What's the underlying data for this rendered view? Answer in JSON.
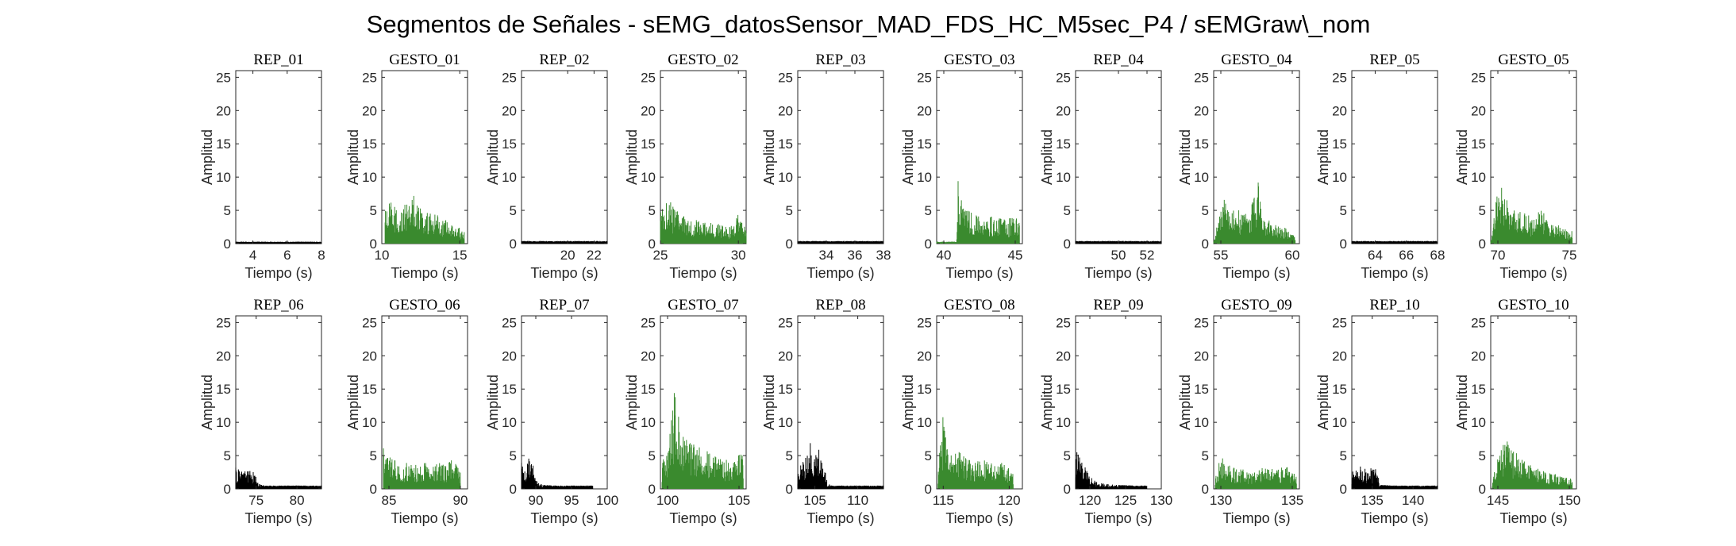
{
  "figure": {
    "title": "Segmentos de Señales - sEMG_datosSensor_MAD_FDS_HC_M5sec_P4 / sEMGraw\\_nom"
  },
  "colors": {
    "rep": "#000000",
    "gesto": "#3a8a2e",
    "axis": "#262626"
  },
  "chart_data": [
    {
      "type": "area",
      "title": "REP_01",
      "kind": "rep",
      "xlim": [
        3,
        8
      ],
      "xticks": [
        4,
        6,
        8
      ],
      "ylim": [
        0,
        26
      ],
      "yticks": [
        0,
        5,
        10,
        15,
        20,
        25
      ],
      "xlabel": "Tiempo (s)",
      "ylabel": "Amplitud",
      "envelope": {
        "x": [
          3,
          8
        ],
        "y": [
          0.3,
          0.3
        ]
      }
    },
    {
      "type": "area",
      "title": "GESTO_01",
      "kind": "gesto",
      "xlim": [
        10,
        15.5
      ],
      "xticks": [
        10,
        15
      ],
      "ylim": [
        0,
        26
      ],
      "yticks": [
        0,
        5,
        10,
        15,
        20,
        25
      ],
      "xlabel": "Tiempo (s)",
      "ylabel": "Amplitud",
      "envelope": {
        "x": [
          10.2,
          10.6,
          11,
          11.5,
          12,
          12.3,
          12.8,
          13.5,
          14,
          14.5,
          15,
          15.3
        ],
        "y": [
          5,
          6.5,
          5,
          6,
          7.5,
          6,
          5,
          4.5,
          4,
          3,
          2.5,
          2
        ]
      }
    },
    {
      "type": "area",
      "title": "REP_02",
      "kind": "rep",
      "xlim": [
        16.5,
        23
      ],
      "xticks": [
        20,
        22
      ],
      "ylim": [
        0,
        26
      ],
      "yticks": [
        0,
        5,
        10,
        15,
        20,
        25
      ],
      "xlabel": "Tiempo (s)",
      "ylabel": "Amplitud",
      "envelope": {
        "x": [
          16.5,
          23
        ],
        "y": [
          0.4,
          0.4
        ]
      }
    },
    {
      "type": "area",
      "title": "GESTO_02",
      "kind": "gesto",
      "xlim": [
        25,
        30.5
      ],
      "xticks": [
        25,
        30
      ],
      "ylim": [
        0,
        26
      ],
      "yticks": [
        0,
        5,
        10,
        15,
        20,
        25
      ],
      "xlabel": "Tiempo (s)",
      "ylabel": "Amplitud",
      "envelope": {
        "x": [
          25,
          25.5,
          26,
          26.5,
          27,
          27.5,
          28,
          28.5,
          29,
          29.5,
          30,
          30.5
        ],
        "y": [
          5,
          7,
          5,
          4.5,
          4,
          3.5,
          3.5,
          3,
          3,
          2.5,
          4.5,
          3
        ]
      }
    },
    {
      "type": "area",
      "title": "REP_03",
      "kind": "rep",
      "xlim": [
        32,
        38
      ],
      "xticks": [
        34,
        36,
        38
      ],
      "ylim": [
        0,
        26
      ],
      "yticks": [
        0,
        5,
        10,
        15,
        20,
        25
      ],
      "xlabel": "Tiempo (s)",
      "ylabel": "Amplitud",
      "envelope": {
        "x": [
          32,
          38
        ],
        "y": [
          0.4,
          0.4
        ]
      }
    },
    {
      "type": "area",
      "title": "GESTO_03",
      "kind": "gesto",
      "xlim": [
        39.5,
        45.5
      ],
      "xticks": [
        40,
        45
      ],
      "ylim": [
        0,
        26
      ],
      "yticks": [
        0,
        5,
        10,
        15,
        20,
        25
      ],
      "xlabel": "Tiempo (s)",
      "ylabel": "Amplitud",
      "envelope": {
        "x": [
          39.5,
          40.9,
          41,
          41.3,
          42,
          42.5,
          43,
          43.5,
          44,
          44.5,
          45,
          45.3
        ],
        "y": [
          0.3,
          0.3,
          10,
          6,
          5,
          4.5,
          4.5,
          4,
          4,
          3.5,
          5,
          3
        ]
      }
    },
    {
      "type": "area",
      "title": "REP_04",
      "kind": "rep",
      "xlim": [
        47,
        53
      ],
      "xticks": [
        50,
        52
      ],
      "ylim": [
        0,
        26
      ],
      "yticks": [
        0,
        5,
        10,
        15,
        20,
        25
      ],
      "xlabel": "Tiempo (s)",
      "ylabel": "Amplitud",
      "envelope": {
        "x": [
          47,
          53
        ],
        "y": [
          0.4,
          0.4
        ]
      }
    },
    {
      "type": "area",
      "title": "GESTO_04",
      "kind": "gesto",
      "xlim": [
        54.5,
        60.5
      ],
      "xticks": [
        55,
        60
      ],
      "ylim": [
        0,
        26
      ],
      "yticks": [
        0,
        5,
        10,
        15,
        20,
        25
      ],
      "xlabel": "Tiempo (s)",
      "ylabel": "Amplitud",
      "envelope": {
        "x": [
          54.5,
          55.2,
          55.6,
          56,
          56.5,
          57,
          57.6,
          58,
          58.5,
          59,
          59.5,
          60.2
        ],
        "y": [
          0.3,
          7.5,
          6,
          5.5,
          5,
          4.5,
          9.5,
          4,
          3.5,
          3,
          2.5,
          1
        ]
      }
    },
    {
      "type": "area",
      "title": "REP_05",
      "kind": "rep",
      "xlim": [
        62.5,
        68
      ],
      "xticks": [
        64,
        66,
        68
      ],
      "ylim": [
        0,
        26
      ],
      "yticks": [
        0,
        5,
        10,
        15,
        20,
        25
      ],
      "xlabel": "Tiempo (s)",
      "ylabel": "Amplitud",
      "envelope": {
        "x": [
          62.5,
          68
        ],
        "y": [
          0.4,
          0.4
        ]
      }
    },
    {
      "type": "area",
      "title": "GESTO_05",
      "kind": "gesto",
      "xlim": [
        69.5,
        75.5
      ],
      "xticks": [
        70,
        75
      ],
      "ylim": [
        0,
        26
      ],
      "yticks": [
        0,
        5,
        10,
        15,
        20,
        25
      ],
      "xlabel": "Tiempo (s)",
      "ylabel": "Amplitud",
      "envelope": {
        "x": [
          69.5,
          70.1,
          70.4,
          71,
          71.5,
          72,
          72.5,
          73,
          73.5,
          74,
          74.5,
          75.2
        ],
        "y": [
          0.3,
          10,
          7,
          6,
          5,
          4.5,
          4,
          5.5,
          3.5,
          3,
          2.5,
          2
        ]
      }
    },
    {
      "type": "area",
      "title": "REP_06",
      "kind": "rep",
      "xlim": [
        72.5,
        83
      ],
      "xticks": [
        75,
        80
      ],
      "ylim": [
        0,
        26
      ],
      "yticks": [
        0,
        5,
        10,
        15,
        20,
        25
      ],
      "xlabel": "Tiempo (s)",
      "ylabel": "Amplitud",
      "envelope": {
        "x": [
          72.5,
          73,
          74,
          75,
          75.3,
          76,
          78,
          80,
          83
        ],
        "y": [
          3.5,
          3,
          3,
          2.5,
          0.8,
          0.5,
          0.5,
          0.5,
          0.5
        ]
      }
    },
    {
      "type": "area",
      "title": "GESTO_06",
      "kind": "gesto",
      "xlim": [
        84.5,
        90.5
      ],
      "xticks": [
        85,
        90
      ],
      "ylim": [
        0,
        26
      ],
      "yticks": [
        0,
        5,
        10,
        15,
        20,
        25
      ],
      "xlabel": "Tiempo (s)",
      "ylabel": "Amplitud",
      "envelope": {
        "x": [
          84.6,
          85,
          85.5,
          86,
          86.5,
          87,
          87.5,
          88,
          88.5,
          89,
          89.5,
          90
        ],
        "y": [
          6.5,
          5,
          4.5,
          4,
          4,
          3.5,
          4,
          3.5,
          4,
          3.5,
          5.5,
          3
        ]
      }
    },
    {
      "type": "area",
      "title": "REP_07",
      "kind": "rep",
      "xlim": [
        88,
        100
      ],
      "xticks": [
        90,
        95,
        100
      ],
      "ylim": [
        0,
        26
      ],
      "yticks": [
        0,
        5,
        10,
        15,
        20,
        25
      ],
      "xlabel": "Tiempo (s)",
      "ylabel": "Amplitud",
      "envelope": {
        "x": [
          88,
          88.5,
          89,
          89.5,
          90.2,
          91,
          93,
          95,
          98
        ],
        "y": [
          4,
          3.5,
          5,
          4,
          1,
          0.6,
          0.5,
          0.5,
          0.5
        ]
      }
    },
    {
      "type": "area",
      "title": "GESTO_07",
      "kind": "gesto",
      "xlim": [
        99.5,
        105.5
      ],
      "xticks": [
        100,
        105
      ],
      "ylim": [
        0,
        26
      ],
      "yticks": [
        0,
        5,
        10,
        15,
        20,
        25
      ],
      "xlabel": "Tiempo (s)",
      "ylabel": "Amplitud",
      "envelope": {
        "x": [
          99.6,
          100,
          100.5,
          101,
          101.5,
          102,
          102.5,
          103,
          103.5,
          104,
          104.5,
          105.3
        ],
        "y": [
          4,
          6,
          15,
          8,
          7,
          6.5,
          6,
          5.5,
          5,
          4.5,
          4,
          6
        ]
      }
    },
    {
      "type": "area",
      "title": "REP_08",
      "kind": "rep",
      "xlim": [
        103,
        113
      ],
      "xticks": [
        105,
        110
      ],
      "ylim": [
        0,
        26
      ],
      "yticks": [
        0,
        5,
        10,
        15,
        20,
        25
      ],
      "xlabel": "Tiempo (s)",
      "ylabel": "Amplitud",
      "envelope": {
        "x": [
          103,
          103.5,
          104,
          104.5,
          105,
          105.5,
          106,
          106.5,
          107,
          109,
          113
        ],
        "y": [
          3,
          4,
          5,
          7.5,
          5,
          6,
          4,
          0.8,
          0.5,
          0.5,
          0.5
        ]
      }
    },
    {
      "type": "area",
      "title": "GESTO_08",
      "kind": "gesto",
      "xlim": [
        114.5,
        121
      ],
      "xticks": [
        115,
        120
      ],
      "ylim": [
        0,
        26
      ],
      "yticks": [
        0,
        5,
        10,
        15,
        20,
        25
      ],
      "xlabel": "Tiempo (s)",
      "ylabel": "Amplitud",
      "envelope": {
        "x": [
          114.6,
          115,
          115.5,
          116,
          116.5,
          117,
          117.5,
          118,
          118.5,
          119,
          119.5,
          120.3
        ],
        "y": [
          3,
          12,
          7,
          6,
          5,
          4.5,
          4,
          5,
          4,
          3.5,
          4,
          2.5
        ]
      }
    },
    {
      "type": "area",
      "title": "REP_09",
      "kind": "rep",
      "xlim": [
        118,
        130
      ],
      "xticks": [
        120,
        125,
        130
      ],
      "ylim": [
        0,
        26
      ],
      "yticks": [
        0,
        5,
        10,
        15,
        20,
        25
      ],
      "xlabel": "Tiempo (s)",
      "ylabel": "Amplitud",
      "envelope": {
        "x": [
          118,
          118.5,
          119,
          119.5,
          120,
          120.5,
          121,
          122,
          124,
          126,
          128
        ],
        "y": [
          6.5,
          5,
          4,
          3,
          2.5,
          1.5,
          1,
          0.8,
          0.6,
          0.5,
          0.5
        ]
      }
    },
    {
      "type": "area",
      "title": "GESTO_09",
      "kind": "gesto",
      "xlim": [
        129.5,
        135.5
      ],
      "xticks": [
        130,
        135
      ],
      "ylim": [
        0,
        26
      ],
      "yticks": [
        0,
        5,
        10,
        15,
        20,
        25
      ],
      "xlabel": "Tiempo (s)",
      "ylabel": "Amplitud",
      "envelope": {
        "x": [
          129.6,
          130,
          130.5,
          131,
          131.5,
          132,
          132.5,
          133,
          133.5,
          134,
          134.5,
          135.3
        ],
        "y": [
          2,
          5,
          4,
          3,
          3,
          2.5,
          2.5,
          3.5,
          3,
          3,
          3.5,
          2.5
        ]
      }
    },
    {
      "type": "area",
      "title": "REP_10",
      "kind": "rep",
      "xlim": [
        132.5,
        143
      ],
      "xticks": [
        135,
        140
      ],
      "ylim": [
        0,
        26
      ],
      "yticks": [
        0,
        5,
        10,
        15,
        20,
        25
      ],
      "xlabel": "Tiempo (s)",
      "ylabel": "Amplitud",
      "envelope": {
        "x": [
          132.5,
          133,
          133.5,
          134,
          134.5,
          135,
          135.5,
          136,
          138,
          140,
          143
        ],
        "y": [
          2.5,
          3,
          3.5,
          3,
          3.5,
          3,
          3,
          0.6,
          0.5,
          0.5,
          0.5
        ]
      }
    },
    {
      "type": "area",
      "title": "GESTO_10",
      "kind": "gesto",
      "xlim": [
        144.5,
        150.5
      ],
      "xticks": [
        145,
        150
      ],
      "ylim": [
        0,
        26
      ],
      "yticks": [
        0,
        5,
        10,
        15,
        20,
        25
      ],
      "xlabel": "Tiempo (s)",
      "ylabel": "Amplitud",
      "envelope": {
        "x": [
          144.6,
          145,
          145.5,
          146,
          146.5,
          147,
          147.5,
          148,
          148.5,
          149,
          149.5,
          150.2
        ],
        "y": [
          1,
          5,
          8,
          6,
          5,
          4,
          3.5,
          3,
          2.5,
          2.5,
          2,
          1.5
        ]
      }
    }
  ]
}
